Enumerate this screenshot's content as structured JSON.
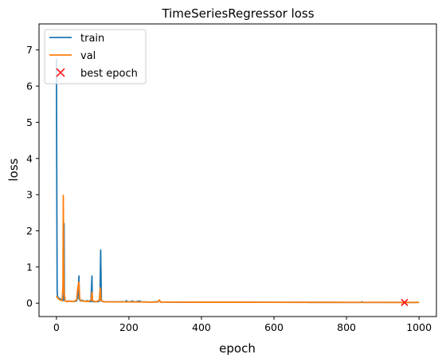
{
  "chart_data": {
    "type": "line",
    "title": "TimeSeriesRegressor loss",
    "xlabel": "epoch",
    "ylabel": "loss",
    "xlim": [
      -48,
      1048
    ],
    "ylim": [
      -0.37,
      7.72
    ],
    "xticks": [
      0,
      200,
      400,
      600,
      800,
      1000
    ],
    "yticks": [
      0,
      1,
      2,
      3,
      4,
      5,
      6,
      7
    ],
    "grid": false,
    "legend": {
      "placement": "top-left",
      "entries": [
        "train",
        "val",
        "best epoch"
      ]
    },
    "series": [
      {
        "name": "train",
        "color": "#1f77b4",
        "points": [
          [
            0,
            6.75
          ],
          [
            1,
            3.2
          ],
          [
            2,
            0.35
          ],
          [
            3,
            0.18
          ],
          [
            5,
            0.15
          ],
          [
            8,
            0.13
          ],
          [
            10,
            0.12
          ],
          [
            13,
            0.1
          ],
          [
            16,
            0.08
          ],
          [
            18,
            0.07
          ],
          [
            20,
            0.09
          ],
          [
            21,
            2.2
          ],
          [
            22,
            0.1
          ],
          [
            24,
            0.06
          ],
          [
            28,
            0.05
          ],
          [
            35,
            0.06
          ],
          [
            40,
            0.05
          ],
          [
            50,
            0.05
          ],
          [
            55,
            0.06
          ],
          [
            58,
            0.12
          ],
          [
            60,
            0.3
          ],
          [
            62,
            0.75
          ],
          [
            63,
            0.12
          ],
          [
            66,
            0.06
          ],
          [
            70,
            0.08
          ],
          [
            75,
            0.06
          ],
          [
            80,
            0.05
          ],
          [
            85,
            0.07
          ],
          [
            90,
            0.05
          ],
          [
            95,
            0.04
          ],
          [
            98,
            0.75
          ],
          [
            99,
            0.05
          ],
          [
            102,
            0.04
          ],
          [
            110,
            0.04
          ],
          [
            118,
            0.05
          ],
          [
            120,
            0.12
          ],
          [
            122,
            1.47
          ],
          [
            124,
            0.06
          ],
          [
            130,
            0.04
          ],
          [
            140,
            0.04
          ],
          [
            150,
            0.035
          ],
          [
            160,
            0.04
          ],
          [
            170,
            0.035
          ],
          [
            180,
            0.04
          ],
          [
            190,
            0.035
          ],
          [
            193,
            0.07
          ],
          [
            196,
            0.035
          ],
          [
            205,
            0.04
          ],
          [
            210,
            0.06
          ],
          [
            213,
            0.035
          ],
          [
            220,
            0.04
          ],
          [
            230,
            0.06
          ],
          [
            233,
            0.035
          ],
          [
            240,
            0.035
          ],
          [
            260,
            0.03
          ],
          [
            280,
            0.04
          ],
          [
            284,
            0.08
          ],
          [
            287,
            0.03
          ],
          [
            300,
            0.03
          ],
          [
            350,
            0.028
          ],
          [
            400,
            0.027
          ],
          [
            450,
            0.026
          ],
          [
            500,
            0.025
          ],
          [
            550,
            0.025
          ],
          [
            600,
            0.024
          ],
          [
            650,
            0.024
          ],
          [
            700,
            0.023
          ],
          [
            750,
            0.023
          ],
          [
            800,
            0.022
          ],
          [
            840,
            0.022
          ],
          [
            842,
            0.04
          ],
          [
            845,
            0.022
          ],
          [
            900,
            0.021
          ],
          [
            950,
            0.021
          ],
          [
            960,
            0.02
          ],
          [
            1000,
            0.021
          ]
        ]
      },
      {
        "name": "val",
        "color": "#ff7f0e",
        "points": [
          [
            0,
            0.2
          ],
          [
            2,
            0.16
          ],
          [
            4,
            0.14
          ],
          [
            6,
            0.12
          ],
          [
            8,
            0.1
          ],
          [
            10,
            0.09
          ],
          [
            13,
            0.08
          ],
          [
            16,
            0.07
          ],
          [
            18,
            0.5
          ],
          [
            19,
            2.98
          ],
          [
            20,
            1.0
          ],
          [
            21,
            0.3
          ],
          [
            22,
            0.25
          ],
          [
            24,
            0.06
          ],
          [
            28,
            0.05
          ],
          [
            40,
            0.05
          ],
          [
            50,
            0.05
          ],
          [
            56,
            0.1
          ],
          [
            58,
            0.35
          ],
          [
            60,
            0.48
          ],
          [
            62,
            0.58
          ],
          [
            64,
            0.15
          ],
          [
            66,
            0.07
          ],
          [
            70,
            0.06
          ],
          [
            80,
            0.05
          ],
          [
            90,
            0.05
          ],
          [
            96,
            0.1
          ],
          [
            98,
            0.3
          ],
          [
            100,
            0.06
          ],
          [
            110,
            0.04
          ],
          [
            118,
            0.08
          ],
          [
            121,
            0.42
          ],
          [
            123,
            0.07
          ],
          [
            130,
            0.04
          ],
          [
            150,
            0.035
          ],
          [
            180,
            0.035
          ],
          [
            200,
            0.035
          ],
          [
            250,
            0.03
          ],
          [
            280,
            0.03
          ],
          [
            284,
            0.09
          ],
          [
            287,
            0.03
          ],
          [
            300,
            0.03
          ],
          [
            400,
            0.026
          ],
          [
            500,
            0.025
          ],
          [
            600,
            0.024
          ],
          [
            700,
            0.023
          ],
          [
            800,
            0.022
          ],
          [
            900,
            0.021
          ],
          [
            960,
            0.02
          ],
          [
            1000,
            0.021
          ]
        ]
      },
      {
        "name": "best epoch",
        "color": "#ff0000",
        "marker": "x",
        "points": [
          [
            960,
            0.02
          ]
        ]
      }
    ]
  }
}
